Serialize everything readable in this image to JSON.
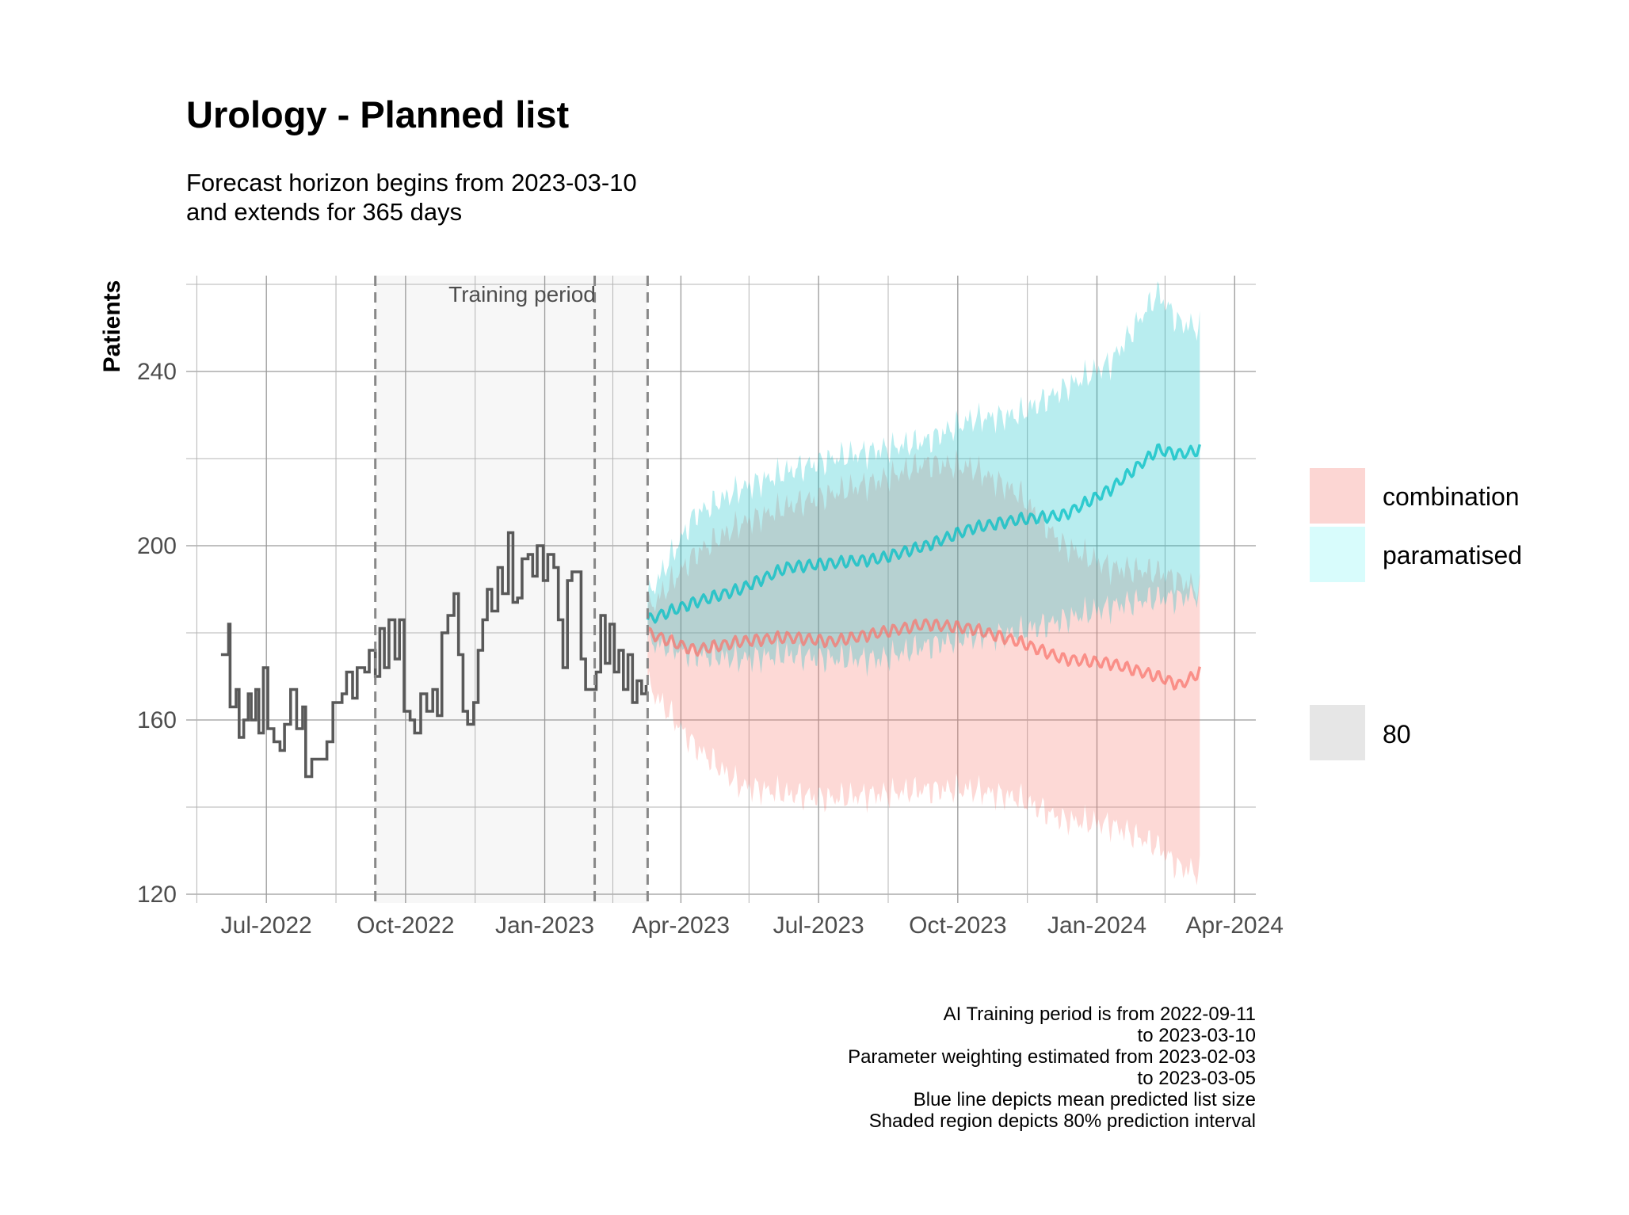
{
  "chart_data": {
    "type": "line",
    "title": "Urology - Planned list",
    "subtitle_lines": [
      "Forecast horizon begins from 2023-03-10",
      "and extends for 365 days"
    ],
    "ylabel": "Patients",
    "xlabel": "",
    "ylim": [
      118,
      262
    ],
    "xlim": [
      "2022-05-09",
      "2024-04-15"
    ],
    "y_ticks": [
      120,
      160,
      200,
      240
    ],
    "x_ticks": [
      {
        "date": "2022-07-01",
        "label": "Jul-2022"
      },
      {
        "date": "2022-10-01",
        "label": "Oct-2022"
      },
      {
        "date": "2023-01-01",
        "label": "Jan-2023"
      },
      {
        "date": "2023-04-01",
        "label": "Apr-2023"
      },
      {
        "date": "2023-07-01",
        "label": "Jul-2023"
      },
      {
        "date": "2023-10-01",
        "label": "Oct-2023"
      },
      {
        "date": "2024-01-01",
        "label": "Jan-2024"
      },
      {
        "date": "2024-04-01",
        "label": "Apr-2024"
      }
    ],
    "grid": true,
    "training_period": {
      "start": "2022-09-11",
      "end": "2023-03-10",
      "label": "Training period"
    },
    "parameter_window_start": "2023-02-03",
    "legend_position": "right",
    "history": {
      "color": "#595959",
      "points": [
        [
          "2022-06-01",
          175
        ],
        [
          "2022-06-04",
          175
        ],
        [
          "2022-06-06",
          182
        ],
        [
          "2022-06-07",
          163
        ],
        [
          "2022-06-11",
          167
        ],
        [
          "2022-06-13",
          156
        ],
        [
          "2022-06-16",
          160
        ],
        [
          "2022-06-19",
          166
        ],
        [
          "2022-06-21",
          160
        ],
        [
          "2022-06-24",
          167
        ],
        [
          "2022-06-26",
          157
        ],
        [
          "2022-06-29",
          172
        ],
        [
          "2022-07-02",
          158
        ],
        [
          "2022-07-06",
          155
        ],
        [
          "2022-07-10",
          153
        ],
        [
          "2022-07-13",
          159
        ],
        [
          "2022-07-17",
          167
        ],
        [
          "2022-07-21",
          158
        ],
        [
          "2022-07-25",
          163
        ],
        [
          "2022-07-27",
          147
        ],
        [
          "2022-07-31",
          151
        ],
        [
          "2022-08-06",
          151
        ],
        [
          "2022-08-10",
          155
        ],
        [
          "2022-08-14",
          164
        ],
        [
          "2022-08-20",
          166
        ],
        [
          "2022-08-23",
          171
        ],
        [
          "2022-08-27",
          165
        ],
        [
          "2022-08-30",
          172
        ],
        [
          "2022-09-04",
          171
        ],
        [
          "2022-09-07",
          176
        ],
        [
          "2022-09-11",
          170
        ],
        [
          "2022-09-14",
          181
        ],
        [
          "2022-09-17",
          172
        ],
        [
          "2022-09-20",
          183
        ],
        [
          "2022-09-24",
          174
        ],
        [
          "2022-09-27",
          183
        ],
        [
          "2022-09-30",
          162
        ],
        [
          "2022-10-04",
          160
        ],
        [
          "2022-10-07",
          157
        ],
        [
          "2022-10-11",
          166
        ],
        [
          "2022-10-15",
          162
        ],
        [
          "2022-10-19",
          167
        ],
        [
          "2022-10-22",
          161
        ],
        [
          "2022-10-25",
          180
        ],
        [
          "2022-10-29",
          184
        ],
        [
          "2022-11-02",
          189
        ],
        [
          "2022-11-05",
          175
        ],
        [
          "2022-11-08",
          162
        ],
        [
          "2022-11-11",
          159
        ],
        [
          "2022-11-15",
          164
        ],
        [
          "2022-11-18",
          176
        ],
        [
          "2022-11-21",
          183
        ],
        [
          "2022-11-24",
          190
        ],
        [
          "2022-11-27",
          185
        ],
        [
          "2022-12-01",
          195
        ],
        [
          "2022-12-04",
          189
        ],
        [
          "2022-12-08",
          203
        ],
        [
          "2022-12-11",
          187
        ],
        [
          "2022-12-14",
          188
        ],
        [
          "2022-12-17",
          197
        ],
        [
          "2022-12-21",
          198
        ],
        [
          "2022-12-24",
          193
        ],
        [
          "2022-12-27",
          200
        ],
        [
          "2022-12-31",
          192
        ],
        [
          "2023-01-03",
          198
        ],
        [
          "2023-01-07",
          195
        ],
        [
          "2023-01-10",
          183
        ],
        [
          "2023-01-13",
          172
        ],
        [
          "2023-01-16",
          192
        ],
        [
          "2023-01-19",
          194
        ],
        [
          "2023-01-22",
          194
        ],
        [
          "2023-01-25",
          174
        ],
        [
          "2023-01-28",
          167
        ],
        [
          "2023-02-01",
          167
        ],
        [
          "2023-02-04",
          171
        ],
        [
          "2023-02-07",
          184
        ],
        [
          "2023-02-10",
          173
        ],
        [
          "2023-02-13",
          182
        ],
        [
          "2023-02-16",
          171
        ],
        [
          "2023-02-19",
          176
        ],
        [
          "2023-02-22",
          167
        ],
        [
          "2023-02-25",
          175
        ],
        [
          "2023-02-28",
          164
        ],
        [
          "2023-03-03",
          169
        ],
        [
          "2023-03-06",
          166
        ],
        [
          "2023-03-09",
          168
        ]
      ]
    },
    "series": [
      {
        "name": "combination",
        "color": "#f8766d",
        "fill": "#fcd6d3",
        "mean": [
          [
            "2023-03-10",
            180
          ],
          [
            "2023-04-10",
            176
          ],
          [
            "2023-05-10",
            178
          ],
          [
            "2023-06-10",
            179
          ],
          [
            "2023-07-10",
            178
          ],
          [
            "2023-08-10",
            180
          ],
          [
            "2023-09-10",
            182
          ],
          [
            "2023-10-10",
            181
          ],
          [
            "2023-11-10",
            178
          ],
          [
            "2023-12-10",
            174
          ],
          [
            "2024-01-10",
            173
          ],
          [
            "2024-02-10",
            170
          ],
          [
            "2024-02-25",
            168
          ],
          [
            "2024-03-09",
            171
          ]
        ],
        "lower": [
          [
            "2023-03-10",
            168
          ],
          [
            "2023-04-10",
            154
          ],
          [
            "2023-05-10",
            145
          ],
          [
            "2023-06-10",
            143
          ],
          [
            "2023-07-10",
            142
          ],
          [
            "2023-08-10",
            143
          ],
          [
            "2023-09-10",
            144
          ],
          [
            "2023-10-10",
            144
          ],
          [
            "2023-11-10",
            142
          ],
          [
            "2023-12-10",
            137
          ],
          [
            "2024-01-10",
            136
          ],
          [
            "2024-02-10",
            131
          ],
          [
            "2024-02-25",
            126
          ],
          [
            "2024-03-09",
            125
          ]
        ],
        "upper": [
          [
            "2023-03-10",
            185
          ],
          [
            "2023-04-10",
            198
          ],
          [
            "2023-05-10",
            205
          ],
          [
            "2023-06-10",
            209
          ],
          [
            "2023-07-10",
            212
          ],
          [
            "2023-08-10",
            215
          ],
          [
            "2023-09-10",
            219
          ],
          [
            "2023-10-10",
            218
          ],
          [
            "2023-11-10",
            212
          ],
          [
            "2023-12-10",
            200
          ],
          [
            "2024-01-10",
            195
          ],
          [
            "2024-02-10",
            194
          ],
          [
            "2024-02-25",
            192
          ],
          [
            "2024-03-09",
            190
          ]
        ]
      },
      {
        "name": "paramatised",
        "color": "#00bfc4",
        "fill": "#d8fcfc",
        "mean": [
          [
            "2023-03-10",
            183
          ],
          [
            "2023-04-10",
            187
          ],
          [
            "2023-05-10",
            190
          ],
          [
            "2023-06-10",
            195
          ],
          [
            "2023-07-10",
            196
          ],
          [
            "2023-08-10",
            197
          ],
          [
            "2023-09-10",
            200
          ],
          [
            "2023-10-10",
            204
          ],
          [
            "2023-11-10",
            206
          ],
          [
            "2023-12-10",
            207
          ],
          [
            "2024-01-10",
            213
          ],
          [
            "2024-02-10",
            222
          ],
          [
            "2024-02-25",
            221
          ],
          [
            "2024-03-09",
            222
          ]
        ],
        "lower": [
          [
            "2023-03-10",
            178
          ],
          [
            "2023-04-10",
            175
          ],
          [
            "2023-05-10",
            174
          ],
          [
            "2023-06-10",
            175
          ],
          [
            "2023-07-10",
            174
          ],
          [
            "2023-08-10",
            174
          ],
          [
            "2023-09-10",
            177
          ],
          [
            "2023-10-10",
            179
          ],
          [
            "2023-11-10",
            180
          ],
          [
            "2023-12-10",
            183
          ],
          [
            "2024-01-10",
            186
          ],
          [
            "2024-02-10",
            188
          ],
          [
            "2024-02-25",
            188
          ],
          [
            "2024-03-09",
            189
          ]
        ],
        "upper": [
          [
            "2023-03-10",
            188
          ],
          [
            "2023-04-10",
            207
          ],
          [
            "2023-05-10",
            213
          ],
          [
            "2023-06-10",
            217
          ],
          [
            "2023-07-10",
            220
          ],
          [
            "2023-08-10",
            222
          ],
          [
            "2023-09-10",
            224
          ],
          [
            "2023-10-10",
            229
          ],
          [
            "2023-11-10",
            230
          ],
          [
            "2023-12-10",
            236
          ],
          [
            "2024-01-10",
            242
          ],
          [
            "2024-02-10",
            258
          ],
          [
            "2024-02-25",
            251
          ],
          [
            "2024-03-09",
            250
          ]
        ]
      }
    ],
    "legend": {
      "entries": [
        {
          "label": "combination",
          "fill": "#fcd6d3"
        },
        {
          "label": "paramatised",
          "fill": "#d8fcfc"
        }
      ],
      "level_label": "80",
      "level_fill": "#e6e6e6"
    },
    "caption_lines": [
      "AI Training period is from 2022-09-11",
      "to 2023-03-10",
      "Parameter weighting estimated from 2023-02-03",
      "to 2023-03-05",
      "Blue line depicts mean predicted list size",
      "Shaded region depicts 80% prediction interval"
    ]
  }
}
